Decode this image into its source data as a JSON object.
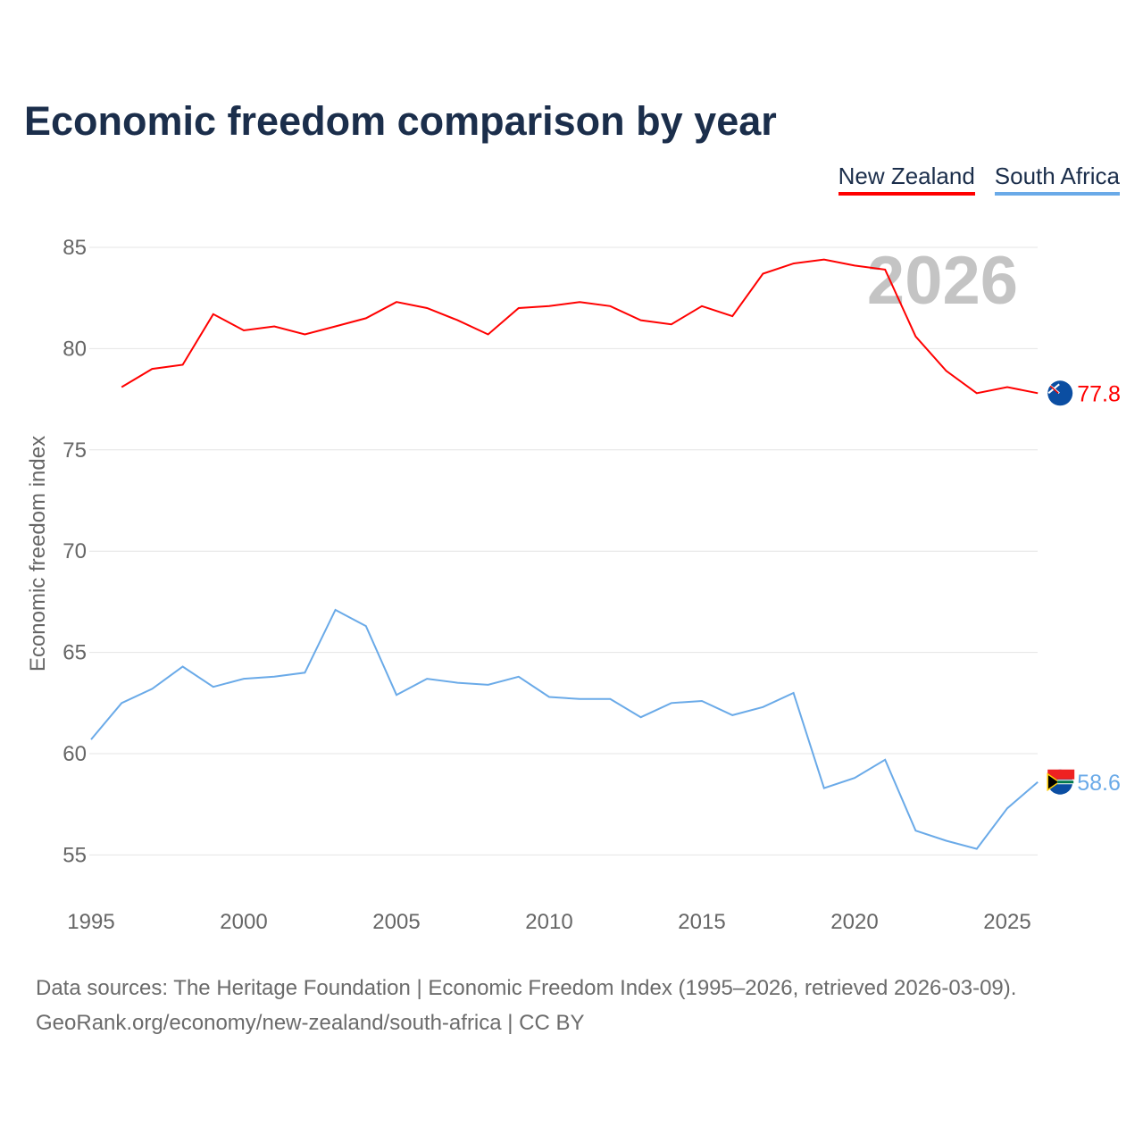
{
  "title": "Economic freedom comparison by year",
  "year_watermark": "2026",
  "source_line1": "Data sources: The Heritage Foundation | Economic Freedom Index (1995–2026, retrieved 2026-03-09).",
  "source_line2": "GeoRank.org/economy/new-zealand/south-africa | CC BY",
  "chart_data": {
    "type": "line",
    "title": "Economic freedom comparison by year",
    "xlabel": "",
    "ylabel": "Economic freedom index",
    "xlim": [
      1995,
      2026
    ],
    "ylim": [
      53,
      87
    ],
    "xticks": [
      1995,
      2000,
      2005,
      2010,
      2015,
      2020,
      2025
    ],
    "yticks": [
      55,
      60,
      65,
      70,
      75,
      80,
      85
    ],
    "grid": true,
    "legend_position": "top-right",
    "series": [
      {
        "name": "New Zealand",
        "color": "#ff0000",
        "end_label": "77.8",
        "x": [
          1996,
          1997,
          1998,
          1999,
          2000,
          2001,
          2002,
          2003,
          2004,
          2005,
          2006,
          2007,
          2008,
          2009,
          2010,
          2011,
          2012,
          2013,
          2014,
          2015,
          2016,
          2017,
          2018,
          2019,
          2020,
          2021,
          2022,
          2023,
          2024,
          2025,
          2026
        ],
        "values": [
          78.1,
          79.0,
          79.2,
          81.7,
          80.9,
          81.1,
          80.7,
          81.1,
          81.5,
          82.3,
          82.0,
          81.4,
          80.7,
          82.0,
          82.1,
          82.3,
          82.1,
          81.4,
          81.2,
          82.1,
          81.6,
          83.7,
          84.2,
          84.4,
          84.1,
          83.9,
          80.6,
          78.9,
          77.8,
          78.1,
          77.8
        ]
      },
      {
        "name": "South Africa",
        "color": "#6aaae8",
        "end_label": "58.6",
        "x": [
          1995,
          1996,
          1997,
          1998,
          1999,
          2000,
          2001,
          2002,
          2003,
          2004,
          2005,
          2006,
          2007,
          2008,
          2009,
          2010,
          2011,
          2012,
          2013,
          2014,
          2015,
          2016,
          2017,
          2018,
          2019,
          2020,
          2021,
          2022,
          2023,
          2024,
          2025,
          2026
        ],
        "values": [
          60.7,
          62.5,
          63.2,
          64.3,
          63.3,
          63.7,
          63.8,
          64.0,
          67.1,
          66.3,
          62.9,
          63.7,
          63.5,
          63.4,
          63.8,
          62.8,
          62.7,
          62.7,
          61.8,
          62.5,
          62.6,
          61.9,
          62.3,
          63.0,
          58.3,
          58.8,
          59.7,
          56.2,
          55.7,
          55.3,
          57.3,
          58.6
        ]
      }
    ]
  }
}
